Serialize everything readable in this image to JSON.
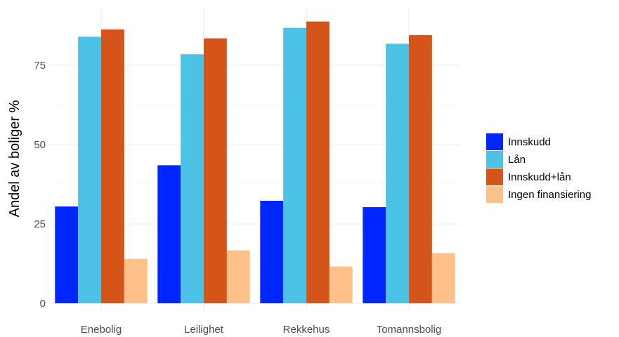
{
  "chart_data": {
    "type": "bar",
    "ylabel": "Andel av boliger %",
    "xlabel": "",
    "categories": [
      "Enebolig",
      "Leilighet",
      "Rekkehus",
      "Tomannsbolig"
    ],
    "series": [
      {
        "name": "Innskudd",
        "color": "#0026FF",
        "values": [
          30.5,
          43.5,
          32.3,
          30.3
        ]
      },
      {
        "name": "Lån",
        "color": "#4CC3E6",
        "values": [
          84.0,
          78.5,
          86.8,
          81.8
        ]
      },
      {
        "name": "Innskudd+lån",
        "color": "#D4541A",
        "values": [
          86.3,
          83.5,
          88.8,
          84.5
        ]
      },
      {
        "name": "Ingen finansiering",
        "color": "#FFC08A",
        "values": [
          14.0,
          16.7,
          11.6,
          15.8
        ]
      }
    ],
    "ylim": [
      0,
      92
    ],
    "yticks": [
      0,
      25,
      50,
      75
    ],
    "ytick_labels": [
      "0",
      "25",
      "50",
      "75"
    ],
    "grid": true,
    "legend_position": "right"
  }
}
